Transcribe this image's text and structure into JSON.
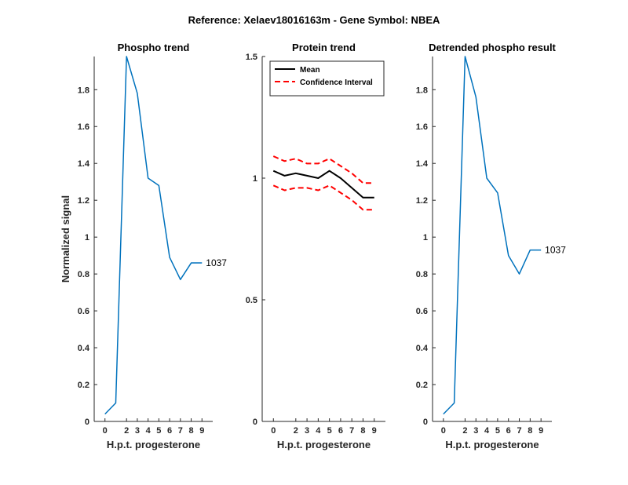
{
  "figure": {
    "suptitle": "Reference:  Xelaev18016163m - Gene Symbol:  NBEA",
    "background": "#ffffff"
  },
  "chart_data": [
    {
      "id": "phospho",
      "type": "line",
      "title": "Phospho trend",
      "xlabel": "H.p.t. progesterone",
      "ylabel": "Normalized signal",
      "xlim": [
        -1,
        10
      ],
      "ylim": [
        0,
        1.98
      ],
      "xticks": [
        0,
        2,
        3,
        4,
        5,
        6,
        7,
        8,
        9
      ],
      "yticks": [
        0,
        0.2,
        0.4,
        0.6,
        0.8,
        1,
        1.2,
        1.4,
        1.6,
        1.8
      ],
      "ytick_labels": [
        "0",
        "0.2",
        "0.4",
        "0.6",
        "0.8",
        "1",
        "1.2",
        "1.4",
        "1.6",
        "1.8"
      ],
      "series": [
        {
          "color": "#0072bd",
          "x": [
            0,
            1,
            2,
            3,
            4,
            5,
            6,
            7,
            8,
            9
          ],
          "values": [
            0.04,
            0.1,
            1.98,
            1.78,
            1.32,
            1.28,
            0.89,
            0.77,
            0.86,
            0.86
          ]
        }
      ],
      "annotation": {
        "text": "1037",
        "x": 9,
        "y": 0.86
      }
    },
    {
      "id": "protein",
      "type": "line",
      "title": "Protein trend",
      "xlabel": "H.p.t. progesterone",
      "ylabel": "",
      "xlim": [
        -1,
        10
      ],
      "ylim": [
        0,
        1.5
      ],
      "xticks": [
        0,
        2,
        3,
        4,
        5,
        6,
        7,
        8,
        9
      ],
      "yticks": [
        0,
        0.5,
        1,
        1.5
      ],
      "ytick_labels": [
        "0",
        "0.5",
        "1",
        "1.5"
      ],
      "legend": {
        "location": "top-left"
      },
      "series": [
        {
          "name": "Mean",
          "color": "#000000",
          "style": "solid",
          "x": [
            0,
            1,
            2,
            3,
            4,
            5,
            6,
            7,
            8,
            9
          ],
          "values": [
            1.03,
            1.01,
            1.02,
            1.01,
            1.0,
            1.03,
            1.0,
            0.96,
            0.92,
            0.92
          ]
        },
        {
          "name": "Confidence Interval",
          "color": "#ff0000",
          "style": "dashed",
          "x": [
            0,
            1,
            2,
            3,
            4,
            5,
            6,
            7,
            8,
            9
          ],
          "values": [
            1.09,
            1.07,
            1.08,
            1.06,
            1.06,
            1.08,
            1.05,
            1.02,
            0.98,
            0.98
          ]
        },
        {
          "name": "",
          "color": "#ff0000",
          "style": "dashed",
          "x": [
            0,
            1,
            2,
            3,
            4,
            5,
            6,
            7,
            8,
            9
          ],
          "values": [
            0.97,
            0.95,
            0.96,
            0.96,
            0.95,
            0.97,
            0.94,
            0.91,
            0.87,
            0.87
          ]
        }
      ]
    },
    {
      "id": "detrended",
      "type": "line",
      "title": "Detrended phospho result",
      "xlabel": "H.p.t. progesterone",
      "ylabel": "",
      "xlim": [
        -1,
        10
      ],
      "ylim": [
        0,
        1.98
      ],
      "xticks": [
        0,
        2,
        3,
        4,
        5,
        6,
        7,
        8,
        9
      ],
      "yticks": [
        0,
        0.2,
        0.4,
        0.6,
        0.8,
        1,
        1.2,
        1.4,
        1.6,
        1.8
      ],
      "ytick_labels": [
        "0",
        "0.2",
        "0.4",
        "0.6",
        "0.8",
        "1",
        "1.2",
        "1.4",
        "1.6",
        "1.8"
      ],
      "series": [
        {
          "color": "#0072bd",
          "x": [
            0,
            1,
            2,
            3,
            4,
            5,
            6,
            7,
            8,
            9
          ],
          "values": [
            0.04,
            0.1,
            1.98,
            1.76,
            1.32,
            1.24,
            0.9,
            0.8,
            0.93,
            0.93
          ]
        }
      ],
      "annotation": {
        "text": "1037",
        "x": 9,
        "y": 0.93
      }
    }
  ]
}
